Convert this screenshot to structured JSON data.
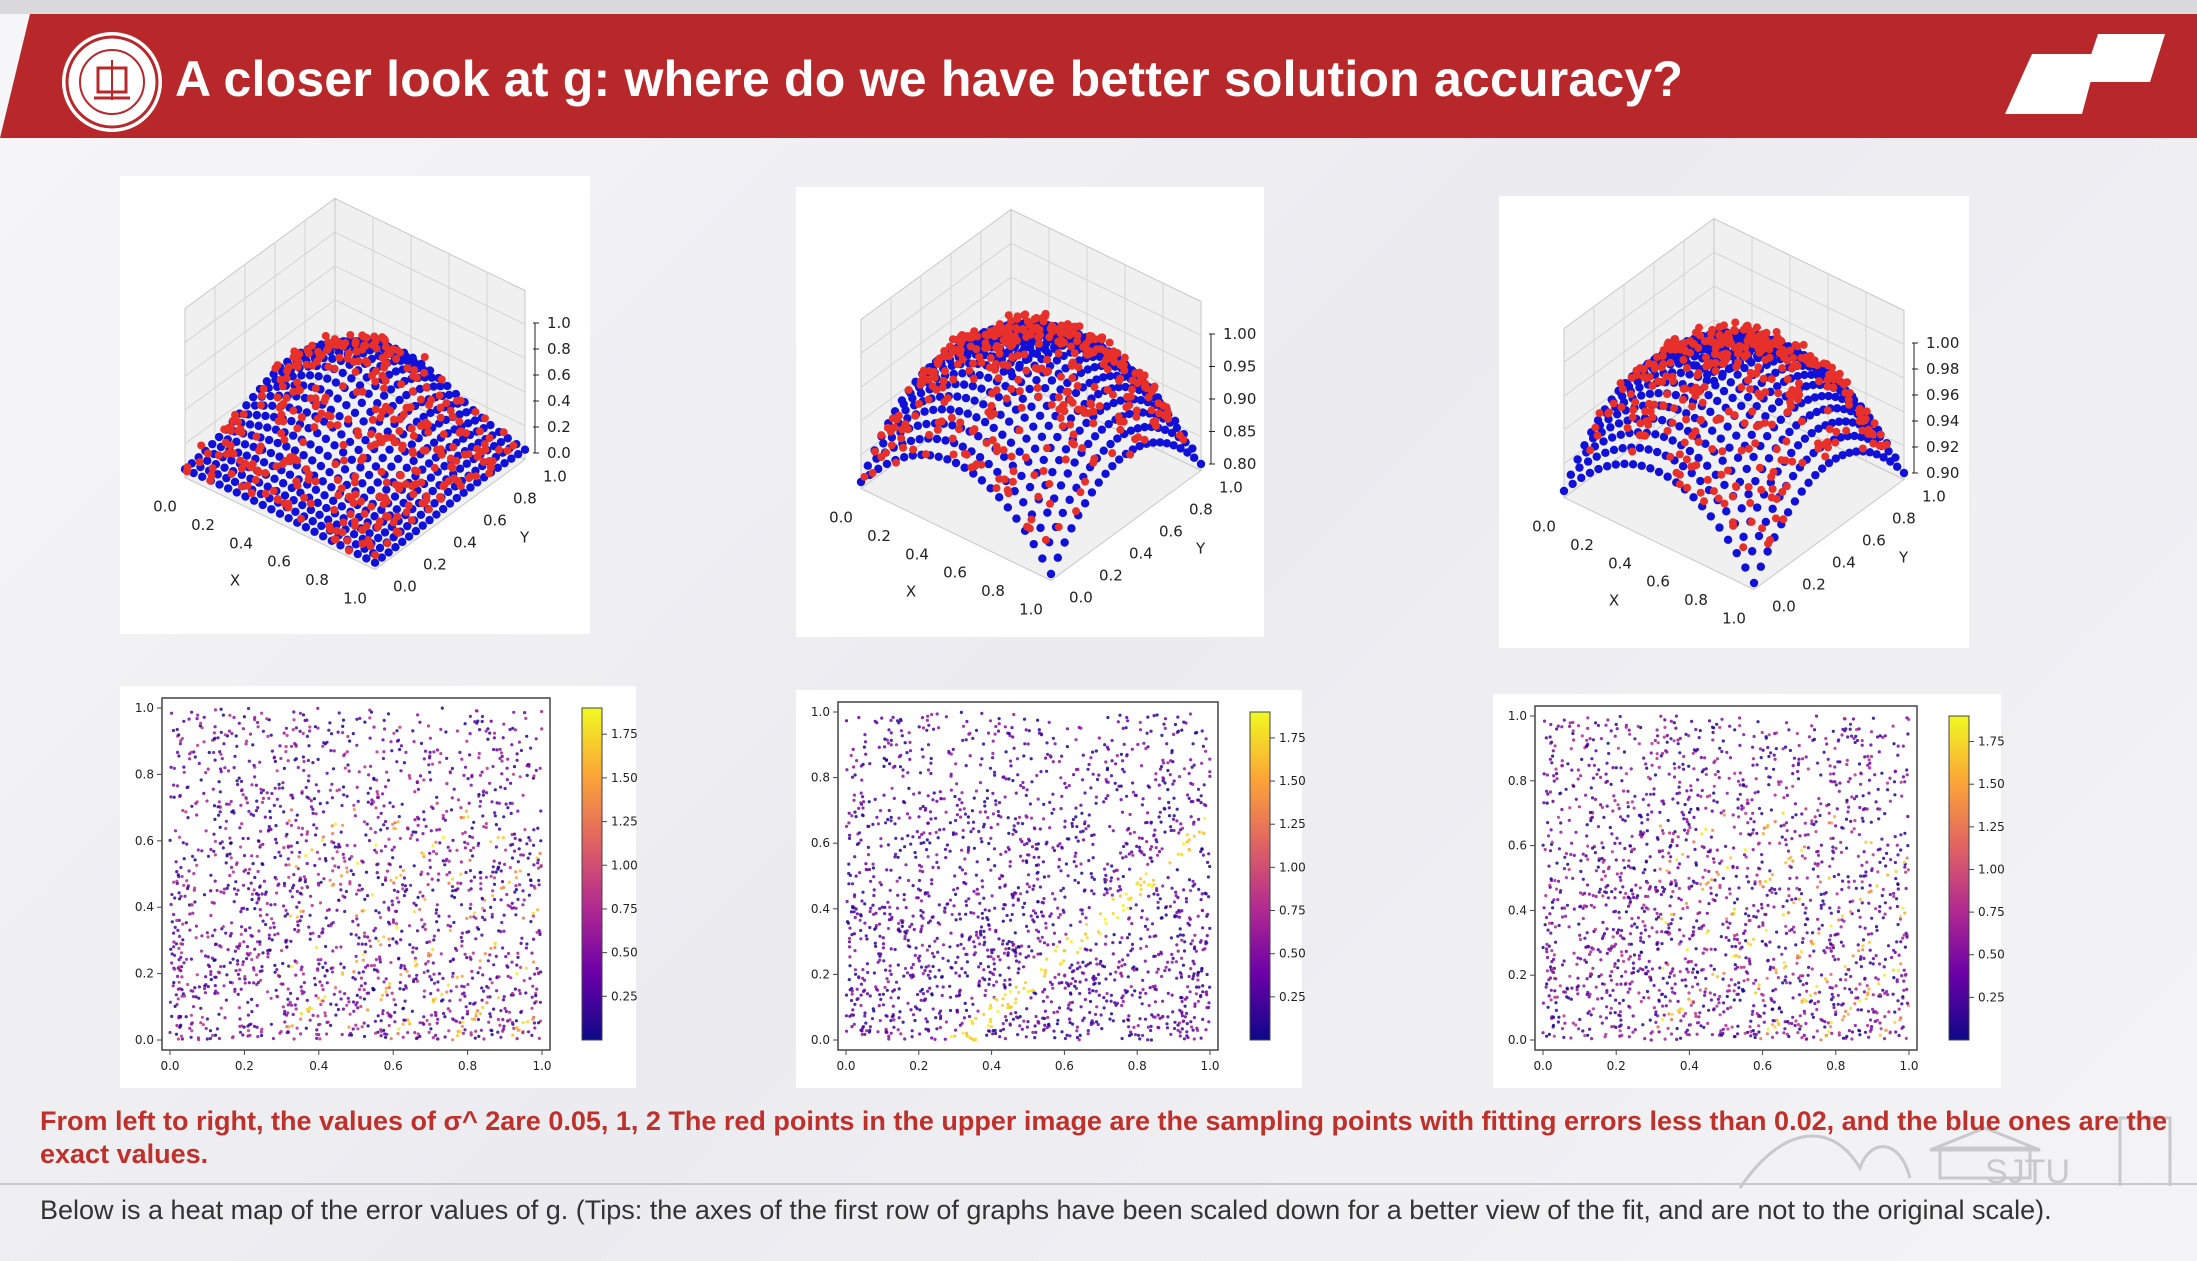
{
  "slide": {
    "title": "A closer look at g: where do we have better solution accuracy?",
    "caption": "From left to right, the values of σ^ 2are 0.05, 1, 2 The red points in the upper image are the sampling points with fitting errors less than 0.02, and the blue ones are the exact values.",
    "note": "Below is a heat map of the error values of g. (Tips: the axes of the first row of graphs have been scaled down for a better view of the fit, and are not to the original scale).",
    "watermark_text": "SJTU"
  },
  "colors": {
    "banner_red": "#b8282b",
    "caption_red": "#c0302b",
    "surface_blue": "#1010d8",
    "sample_red": "#e8302a"
  },
  "chart_data": [
    {
      "type": "scatter",
      "panel": "surface-3d-1",
      "xlabel": "X",
      "ylabel": "Y",
      "x_ticks": [
        "0.0",
        "0.2",
        "0.4",
        "0.6",
        "0.8",
        "1.0"
      ],
      "y_ticks": [
        "0.0",
        "0.2",
        "0.4",
        "0.6",
        "0.8",
        "1.0"
      ],
      "z_ticks": [
        "1.0",
        "0.8",
        "0.6",
        "0.4",
        "0.2",
        "0.0"
      ],
      "zlim": [
        0.0,
        1.0
      ],
      "series": [
        {
          "color": "#1010d8"
        },
        {
          "color": "#e8302a"
        }
      ]
    },
    {
      "type": "scatter",
      "panel": "surface-3d-2",
      "xlabel": "X",
      "ylabel": "Y",
      "x_ticks": [
        "0.0",
        "0.2",
        "0.4",
        "0.6",
        "0.8",
        "1.0"
      ],
      "y_ticks": [
        "0.0",
        "0.2",
        "0.4",
        "0.6",
        "0.8",
        "1.0"
      ],
      "z_ticks": [
        "1.00",
        "0.95",
        "0.90",
        "0.85",
        "0.80"
      ],
      "zlim": [
        0.8,
        1.0
      ],
      "series": [
        {
          "color": "#1010d8"
        },
        {
          "color": "#e8302a"
        }
      ]
    },
    {
      "type": "scatter",
      "panel": "surface-3d-3",
      "xlabel": "X",
      "ylabel": "Y",
      "x_ticks": [
        "0.0",
        "0.2",
        "0.4",
        "0.6",
        "0.8",
        "1.0"
      ],
      "y_ticks": [
        "0.0",
        "0.2",
        "0.4",
        "0.6",
        "0.8",
        "1.0"
      ],
      "z_ticks": [
        "1.00",
        "0.98",
        "0.96",
        "0.94",
        "0.92",
        "0.90"
      ],
      "zlim": [
        0.9,
        1.0
      ],
      "series": [
        {
          "color": "#1010d8"
        },
        {
          "color": "#e8302a"
        }
      ]
    },
    {
      "type": "heatmap",
      "panel": "error-heatmap-1",
      "xlim": [
        0.0,
        1.0
      ],
      "ylim": [
        0.0,
        1.0
      ],
      "x_ticks": [
        "0.0",
        "0.2",
        "0.4",
        "0.6",
        "0.8",
        "1.0"
      ],
      "y_ticks": [
        "0.0",
        "0.2",
        "0.4",
        "0.6",
        "0.8",
        "1.0"
      ],
      "colorbar_ticks": [
        "1.75",
        "1.50",
        "1.25",
        "1.00",
        "0.75",
        "0.50",
        "0.25"
      ],
      "colorbar_range": [
        0.0,
        1.9
      ],
      "pattern": "diagonal-stripes"
    },
    {
      "type": "heatmap",
      "panel": "error-heatmap-2",
      "xlim": [
        0.0,
        1.0
      ],
      "ylim": [
        0.0,
        1.0
      ],
      "x_ticks": [
        "0.0",
        "0.2",
        "0.4",
        "0.6",
        "0.8",
        "1.0"
      ],
      "y_ticks": [
        "0.0",
        "0.2",
        "0.4",
        "0.6",
        "0.8",
        "1.0"
      ],
      "colorbar_ticks": [
        "1.75",
        "1.50",
        "1.25",
        "1.00",
        "0.75",
        "0.50",
        "0.25"
      ],
      "colorbar_range": [
        0.0,
        1.9
      ],
      "pattern": "single-diagonal-band"
    },
    {
      "type": "heatmap",
      "panel": "error-heatmap-3",
      "xlim": [
        0.0,
        1.0
      ],
      "ylim": [
        0.0,
        1.0
      ],
      "x_ticks": [
        "0.0",
        "0.2",
        "0.4",
        "0.6",
        "0.8",
        "1.0"
      ],
      "y_ticks": [
        "0.0",
        "0.2",
        "0.4",
        "0.6",
        "0.8",
        "1.0"
      ],
      "colorbar_ticks": [
        "1.75",
        "1.50",
        "1.25",
        "1.00",
        "0.75",
        "0.50",
        "0.25"
      ],
      "colorbar_range": [
        0.0,
        1.9
      ],
      "pattern": "diagonal-stripes"
    }
  ]
}
